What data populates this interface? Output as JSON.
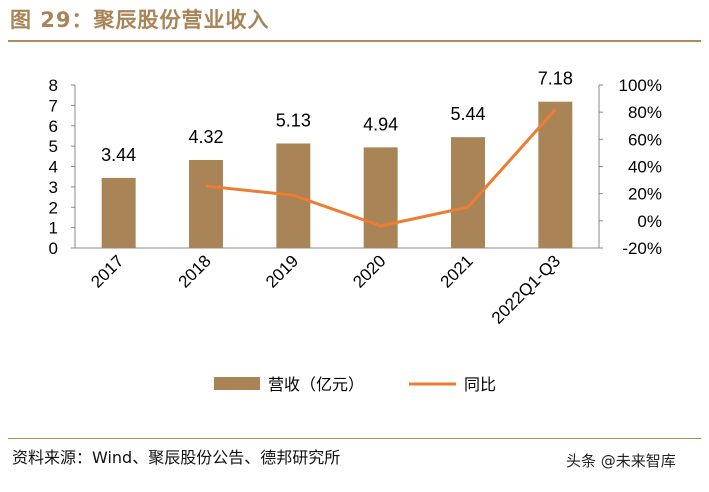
{
  "figure": {
    "title": "图 29：聚辰股份营业收入",
    "source": "资料来源：Wind、聚辰股份公告、德邦研究所",
    "watermark": "头条 @未来智库"
  },
  "colors": {
    "bar": "#a88457",
    "line": "#ed7d31",
    "accent": "#a88457"
  },
  "chart_data": {
    "type": "bar",
    "categories": [
      "2017",
      "2018",
      "2019",
      "2020",
      "2021",
      "2022Q1-Q3"
    ],
    "series": [
      {
        "name": "营收（亿元）",
        "type": "bar",
        "axis": "left",
        "values": [
          3.44,
          4.32,
          5.13,
          4.94,
          5.44,
          7.18
        ],
        "labels": [
          "3.44",
          "4.32",
          "5.13",
          "4.94",
          "5.44",
          "7.18"
        ]
      },
      {
        "name": "同比",
        "type": "line",
        "axis": "right",
        "values": [
          null,
          25.6,
          18.8,
          -3.7,
          10.1,
          82.0
        ]
      }
    ],
    "ylim_left": [
      0,
      8
    ],
    "ylim_right": [
      -20,
      100
    ],
    "y_ticks_left": [
      "0",
      "1",
      "2",
      "3",
      "4",
      "5",
      "6",
      "7",
      "8"
    ],
    "y_ticks_right": [
      "-20%",
      "0%",
      "20%",
      "40%",
      "60%",
      "80%",
      "100%"
    ],
    "legend": {
      "position": "bottom",
      "bar_label": "营收（亿元）",
      "line_label": "同比"
    },
    "grid": false
  }
}
